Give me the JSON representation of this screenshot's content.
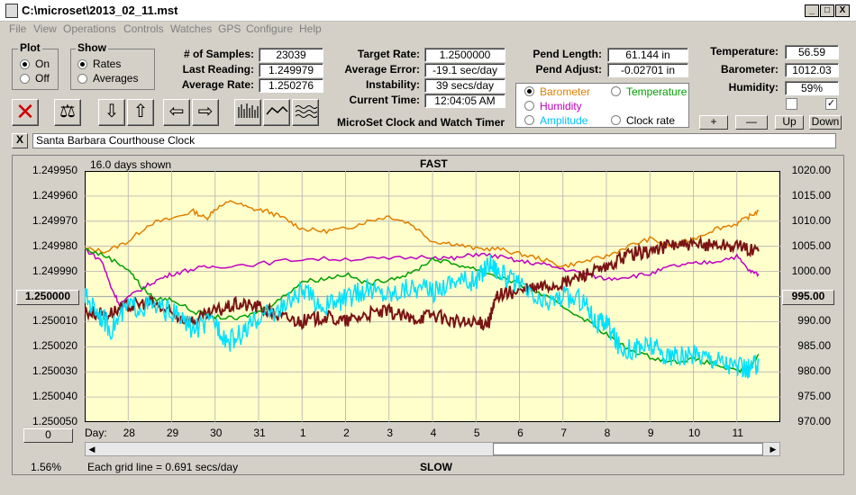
{
  "window": {
    "title": "C:\\microset\\2013_02_11.mst",
    "min": "_",
    "max": "□",
    "close": "X"
  },
  "menu": [
    "File",
    "View",
    "Operations",
    "Controls",
    "Watches",
    "GPS",
    "Configure",
    "Help"
  ],
  "plot_group": {
    "title": "Plot",
    "options": [
      "On",
      "Off"
    ],
    "selected": "On"
  },
  "show_group": {
    "title": "Show",
    "options": [
      "Rates",
      "Averages"
    ],
    "selected": "Rates"
  },
  "stats": {
    "samples_label": "# of Samples:",
    "samples": "23039",
    "last_label": "Last Reading:",
    "last": "1.249979",
    "avg_label": "Average Rate:",
    "avg": "1.250276",
    "target_label": "Target Rate:",
    "target": "1.2500000",
    "avgerr_label": "Average Error:",
    "avgerr": "-19.1 sec/day",
    "instab_label": "Instability:",
    "instab": "39 secs/day",
    "time_label": "Current Time:",
    "time": "12:04:05 AM",
    "pendlen_label": "Pend Length:",
    "pendlen": "61.144 in",
    "pendadj_label": "Pend Adjust:",
    "pendadj": "-0.02701 in",
    "temp_label": "Temperature:",
    "temp": "56.59",
    "baro_label": "Barometer:",
    "baro": "1012.03",
    "hum_label": "Humidity:",
    "hum": "59%"
  },
  "app_name": "MicroSet Clock and Watch Timer",
  "sensor_options": [
    {
      "label": "Barometer",
      "color": "#e08000",
      "selected": true
    },
    {
      "label": "Temperature",
      "color": "#00a000",
      "selected": false
    },
    {
      "label": "Humidity",
      "color": "#c000c0",
      "selected": false
    },
    {
      "label": "Clock rate",
      "color": "#000000",
      "selected": false
    },
    {
      "label": "Amplitude",
      "color": "#00c0ff",
      "selected": false
    }
  ],
  "scale_buttons": [
    "+",
    "—",
    "Up",
    "Down"
  ],
  "clock_name": "Santa Barbara Courthouse Clock",
  "close_clock": "X",
  "chart_data": {
    "type": "line",
    "title": "FAST",
    "bottom_label": "SLOW",
    "days_shown": "16.0 days shown",
    "grid_note": "Each grid line = 0.691 secs/day",
    "percent": "1.56%",
    "offset_box": "0",
    "center_left": "1.250000",
    "center_right": "995.00",
    "x_title": "Day:",
    "x_ticks": [
      "28",
      "29",
      "30",
      "31",
      "1",
      "2",
      "3",
      "4",
      "5",
      "6",
      "7",
      "8",
      "9",
      "10",
      "11"
    ],
    "y_left_ticks": [
      "1.249950",
      "1.249960",
      "1.249970",
      "1.249980",
      "1.249990",
      "1.250000",
      "1.250010",
      "1.250020",
      "1.250030",
      "1.250040",
      "1.250050"
    ],
    "y_right_ticks": [
      "1020.00",
      "1015.00",
      "1010.00",
      "1005.00",
      "1000.00",
      "995.00",
      "990.00",
      "985.00",
      "980.00",
      "975.00",
      "970.00"
    ],
    "x_range": [
      27.0,
      43.0
    ],
    "y_right_range": [
      970,
      1020
    ],
    "series": [
      {
        "name": "Barometer",
        "color": "#e08000",
        "values": [
          [
            27.0,
            1004.5
          ],
          [
            27.5,
            1004.0
          ],
          [
            28.0,
            1006.0
          ],
          [
            28.5,
            1009.5
          ],
          [
            29.0,
            1010.5
          ],
          [
            29.5,
            1012.0
          ],
          [
            29.8,
            1010.5
          ],
          [
            30.0,
            1012.5
          ],
          [
            30.4,
            1014.0
          ],
          [
            30.8,
            1012.5
          ],
          [
            31.2,
            1012.0
          ],
          [
            31.6,
            1010.5
          ],
          [
            32.0,
            1008.5
          ],
          [
            32.5,
            1008.0
          ],
          [
            33.0,
            1008.5
          ],
          [
            33.5,
            1010.0
          ],
          [
            34.0,
            1011.0
          ],
          [
            34.5,
            1009.5
          ],
          [
            35.0,
            1006.0
          ],
          [
            35.5,
            1005.5
          ],
          [
            36.0,
            1004.5
          ],
          [
            36.5,
            1004.5
          ],
          [
            37.0,
            1003.5
          ],
          [
            37.5,
            1002.5
          ],
          [
            38.0,
            1001.0
          ],
          [
            38.5,
            1002.0
          ],
          [
            39.0,
            1003.0
          ],
          [
            39.5,
            1005.0
          ],
          [
            40.0,
            1006.5
          ],
          [
            40.5,
            1005.0
          ],
          [
            41.0,
            1006.5
          ],
          [
            41.5,
            1008.5
          ],
          [
            42.0,
            1009.5
          ],
          [
            42.3,
            1011.0
          ],
          [
            42.5,
            1012.0
          ]
        ]
      },
      {
        "name": "Humidity",
        "color": "#c000c0",
        "values": [
          [
            27.0,
            1004.5
          ],
          [
            27.4,
            1002.0
          ],
          [
            27.6,
            997.0
          ],
          [
            27.8,
            993.5
          ],
          [
            28.2,
            996.0
          ],
          [
            28.6,
            998.0
          ],
          [
            29.0,
            999.5
          ],
          [
            29.5,
            1000.5
          ],
          [
            30.0,
            1001.0
          ],
          [
            31.0,
            1001.5
          ],
          [
            32.0,
            1002.5
          ],
          [
            33.0,
            1002.5
          ],
          [
            34.0,
            1002.5
          ],
          [
            35.0,
            1003.0
          ],
          [
            35.5,
            1002.5
          ],
          [
            36.0,
            1003.5
          ],
          [
            36.5,
            1003.0
          ],
          [
            37.0,
            1002.0
          ],
          [
            37.5,
            1001.5
          ],
          [
            38.0,
            1000.5
          ],
          [
            38.5,
            999.5
          ],
          [
            39.0,
            998.5
          ],
          [
            39.5,
            999.0
          ],
          [
            40.0,
            999.5
          ],
          [
            40.5,
            1001.0
          ],
          [
            41.0,
            1001.5
          ],
          [
            41.5,
            1002.0
          ],
          [
            42.0,
            1003.0
          ],
          [
            42.3,
            1000.0
          ],
          [
            42.5,
            999.5
          ]
        ]
      },
      {
        "name": "Temperature",
        "color": "#00a000",
        "values": [
          [
            27.0,
            1004.5
          ],
          [
            27.5,
            1003.0
          ],
          [
            28.0,
            1000.5
          ],
          [
            28.3,
            997.0
          ],
          [
            28.6,
            994.5
          ],
          [
            29.0,
            994.5
          ],
          [
            29.5,
            992.0
          ],
          [
            30.0,
            991.0
          ],
          [
            30.5,
            990.5
          ],
          [
            31.0,
            992.0
          ],
          [
            31.5,
            994.5
          ],
          [
            32.0,
            998.0
          ],
          [
            32.5,
            998.5
          ],
          [
            33.0,
            999.5
          ],
          [
            33.5,
            997.5
          ],
          [
            34.0,
            998.5
          ],
          [
            34.5,
            999.5
          ],
          [
            35.0,
            1002.5
          ],
          [
            35.5,
            1001.5
          ],
          [
            36.0,
            1000.5
          ],
          [
            36.5,
            999.0
          ],
          [
            37.0,
            997.5
          ],
          [
            37.5,
            995.5
          ],
          [
            38.0,
            993.0
          ],
          [
            38.5,
            990.5
          ],
          [
            39.0,
            987.5
          ],
          [
            39.5,
            984.5
          ],
          [
            40.0,
            983.0
          ],
          [
            40.5,
            982.0
          ],
          [
            41.0,
            982.5
          ],
          [
            41.5,
            981.5
          ],
          [
            42.0,
            980.0
          ],
          [
            42.3,
            981.0
          ],
          [
            42.5,
            983.5
          ]
        ]
      },
      {
        "name": "Clock rate",
        "color": "#7a1414",
        "values": [
          [
            27.0,
            992.0
          ],
          [
            27.5,
            991.5
          ],
          [
            28.0,
            993.0
          ],
          [
            28.5,
            994.0
          ],
          [
            29.0,
            991.5
          ],
          [
            29.5,
            990.0
          ],
          [
            30.0,
            992.0
          ],
          [
            30.5,
            993.5
          ],
          [
            31.0,
            993.0
          ],
          [
            31.5,
            991.0
          ],
          [
            32.0,
            990.0
          ],
          [
            32.5,
            991.0
          ],
          [
            33.0,
            990.0
          ],
          [
            33.5,
            991.5
          ],
          [
            34.0,
            992.0
          ],
          [
            34.5,
            990.5
          ],
          [
            35.0,
            991.5
          ],
          [
            35.5,
            990.0
          ],
          [
            36.0,
            989.5
          ],
          [
            36.3,
            990.0
          ],
          [
            36.5,
            995.5
          ],
          [
            37.0,
            996.0
          ],
          [
            37.5,
            997.0
          ],
          [
            38.0,
            997.5
          ],
          [
            38.5,
            999.5
          ],
          [
            39.0,
            1000.5
          ],
          [
            39.5,
            1003.5
          ],
          [
            40.0,
            1004.0
          ],
          [
            40.5,
            1005.5
          ],
          [
            41.0,
            1005.0
          ],
          [
            41.5,
            1005.5
          ],
          [
            42.0,
            1005.0
          ],
          [
            42.5,
            1004.0
          ]
        ]
      },
      {
        "name": "Amplitude",
        "color": "#00e0ff",
        "values": [
          [
            27.0,
            995.0
          ],
          [
            27.3,
            992.0
          ],
          [
            27.6,
            988.5
          ],
          [
            28.0,
            993.0
          ],
          [
            28.5,
            993.0
          ],
          [
            29.0,
            992.0
          ],
          [
            29.5,
            988.5
          ],
          [
            30.0,
            990.0
          ],
          [
            30.3,
            986.0
          ],
          [
            30.7,
            988.0
          ],
          [
            31.0,
            991.0
          ],
          [
            31.5,
            992.5
          ],
          [
            32.0,
            996.0
          ],
          [
            32.5,
            993.0
          ],
          [
            33.0,
            994.5
          ],
          [
            33.5,
            996.5
          ],
          [
            34.0,
            995.5
          ],
          [
            34.5,
            997.0
          ],
          [
            35.0,
            996.0
          ],
          [
            35.5,
            998.5
          ],
          [
            36.0,
            998.0
          ],
          [
            36.3,
            1002.0
          ],
          [
            36.6,
            999.5
          ],
          [
            37.0,
            997.0
          ],
          [
            37.5,
            993.5
          ],
          [
            38.0,
            995.0
          ],
          [
            38.5,
            994.0
          ],
          [
            38.8,
            989.5
          ],
          [
            39.0,
            990.0
          ],
          [
            39.3,
            985.0
          ],
          [
            39.7,
            984.5
          ],
          [
            40.0,
            985.5
          ],
          [
            40.4,
            983.0
          ],
          [
            40.8,
            983.0
          ],
          [
            41.2,
            983.5
          ],
          [
            41.6,
            982.5
          ],
          [
            42.0,
            981.0
          ],
          [
            42.3,
            980.5
          ],
          [
            42.5,
            982.0
          ]
        ]
      }
    ]
  }
}
